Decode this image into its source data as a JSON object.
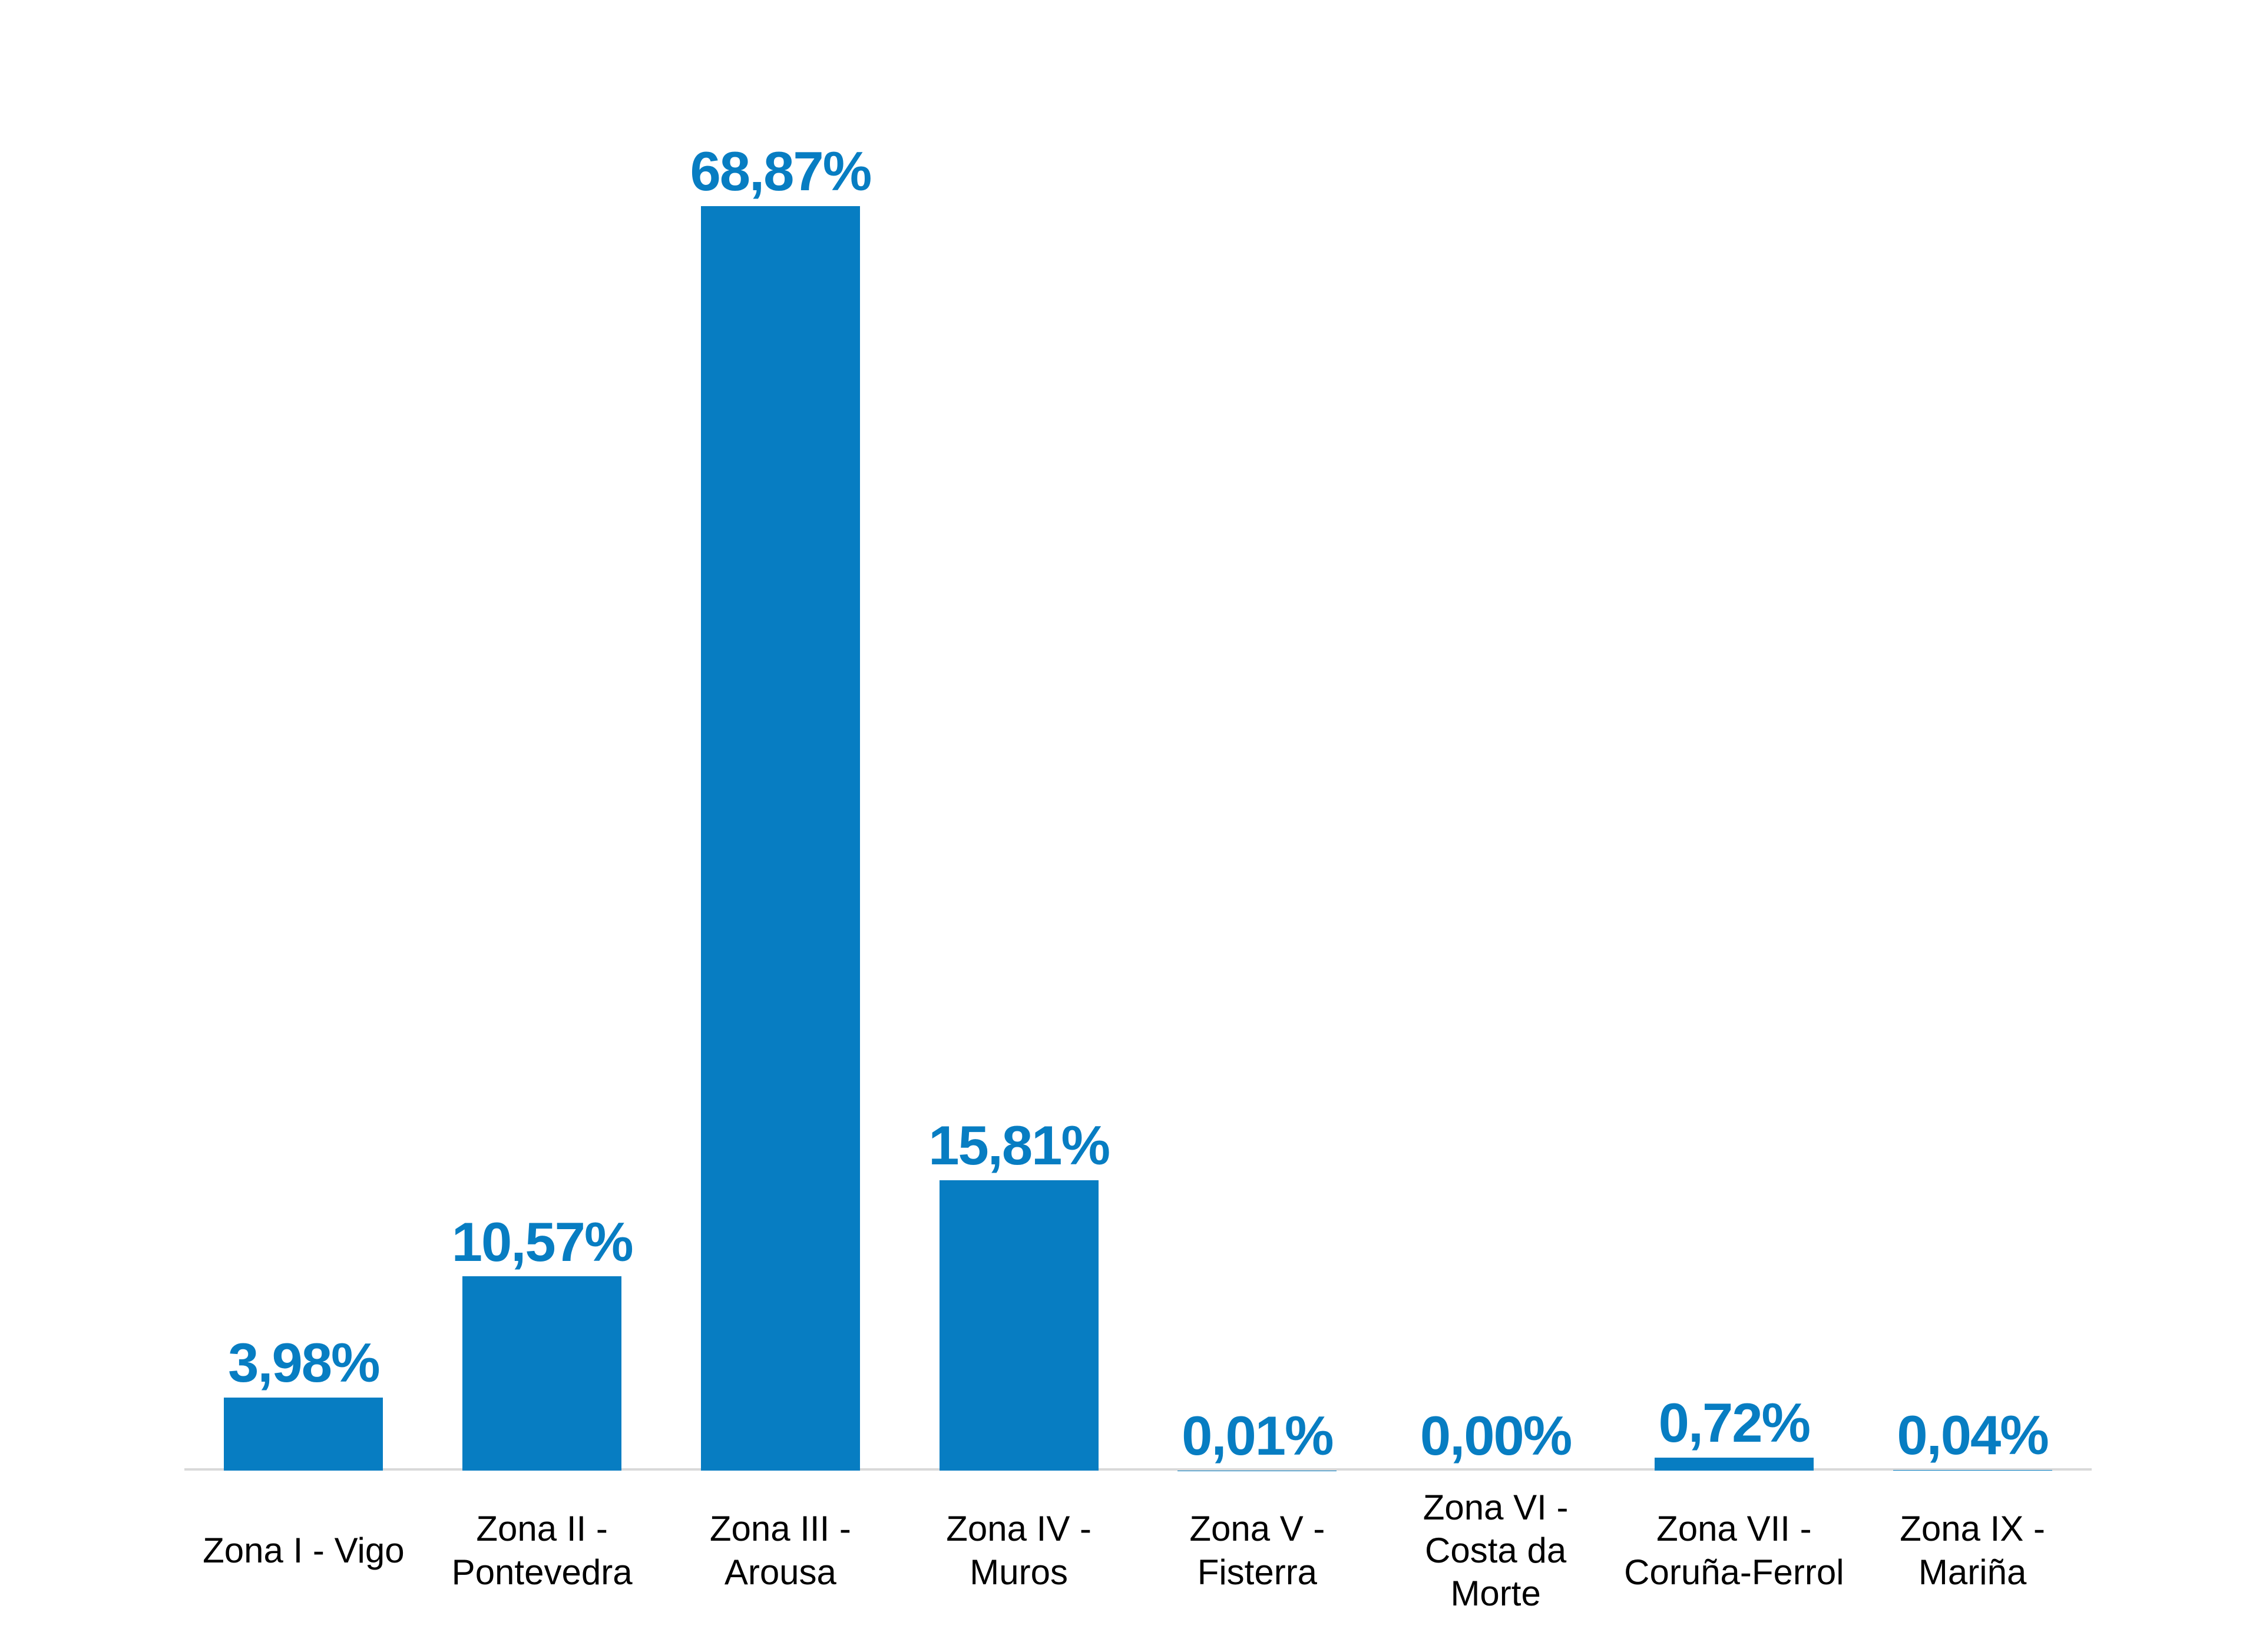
{
  "chart_data": {
    "type": "bar",
    "title": "",
    "xlabel": "",
    "ylabel": "",
    "grid": false,
    "legend": false,
    "ylim": [
      0,
      68.87
    ],
    "number_format": "percent-comma-decimal",
    "categories": [
      "Zona I - Vigo",
      "Zona II - Pontevedra",
      "Zona III - Arousa",
      "Zona IV - Muros",
      "Zona V - Fisterra",
      "Zona VI - Costa da Morte",
      "Zona VII - Coruña-Ferrol",
      "Zona IX - Mariña"
    ],
    "category_lines": [
      [
        "Zona I - Vigo"
      ],
      [
        "Zona II -",
        "Pontevedra"
      ],
      [
        "Zona III -",
        "Arousa"
      ],
      [
        "Zona IV -",
        "Muros"
      ],
      [
        "Zona V -",
        "Fisterra"
      ],
      [
        "Zona VI -",
        "Costa da",
        "Morte"
      ],
      [
        "Zona VII -",
        "Coruña-Ferrol"
      ],
      [
        "Zona IX -",
        "Mariña"
      ]
    ],
    "values": [
      3.98,
      10.57,
      68.87,
      15.81,
      0.01,
      0.0,
      0.72,
      0.04
    ],
    "value_labels": [
      "3,98%",
      "10,57%",
      "68,87%",
      "15,81%",
      "0,01%",
      "0,00%",
      "0,72%",
      "0,04%"
    ],
    "colors": {
      "bar": "#077DC2",
      "value_label": "#077DC2",
      "category_label": "#000000",
      "axis_line": "#D9D9D9",
      "background": "#FFFFFF"
    }
  }
}
